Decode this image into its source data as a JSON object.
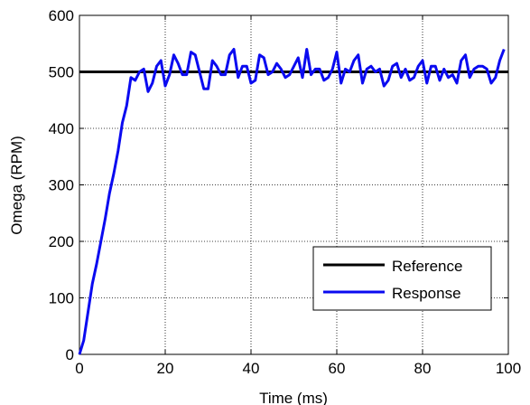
{
  "chart_data": {
    "type": "line",
    "xlabel": "Time (ms)",
    "ylabel": "Omega (RPM)",
    "xlim": [
      0,
      100
    ],
    "ylim": [
      0,
      600
    ],
    "xticks": [
      0,
      20,
      40,
      60,
      80,
      100
    ],
    "yticks": [
      0,
      100,
      200,
      300,
      400,
      500,
      600
    ],
    "xtick_labels": [
      "0",
      "20",
      "40",
      "60",
      "80",
      "100"
    ],
    "ytick_labels": [
      "0",
      "100",
      "200",
      "300",
      "400",
      "500",
      "600"
    ],
    "grid": true,
    "legend_position": "bottom-right",
    "series": [
      {
        "name": "Reference",
        "color": "#000000",
        "x": [
          0,
          100
        ],
        "y": [
          500,
          500
        ]
      },
      {
        "name": "Response",
        "color": "#0a0af0",
        "x": [
          0,
          1,
          2,
          3,
          4,
          5,
          6,
          7,
          8,
          9,
          10,
          11,
          12,
          13,
          14,
          15,
          16,
          17,
          18,
          19,
          20,
          21,
          22,
          23,
          24,
          25,
          26,
          27,
          28,
          29,
          30,
          31,
          32,
          33,
          34,
          35,
          36,
          37,
          38,
          39,
          40,
          41,
          42,
          43,
          44,
          45,
          46,
          47,
          48,
          49,
          50,
          51,
          52,
          53,
          54,
          55,
          56,
          57,
          58,
          59,
          60,
          61,
          62,
          63,
          64,
          65,
          66,
          67,
          68,
          69,
          70,
          71,
          72,
          73,
          74,
          75,
          76,
          77,
          78,
          79,
          80,
          81,
          82,
          83,
          84,
          85,
          86,
          87,
          88,
          89,
          90,
          91,
          92,
          93,
          94,
          95,
          96,
          97,
          98,
          99
        ],
        "y": [
          0,
          25,
          75,
          125,
          160,
          200,
          240,
          285,
          320,
          360,
          410,
          440,
          490,
          485,
          500,
          505,
          465,
          480,
          510,
          520,
          475,
          495,
          530,
          515,
          495,
          495,
          535,
          530,
          500,
          470,
          470,
          520,
          510,
          495,
          495,
          530,
          540,
          490,
          510,
          510,
          480,
          485,
          530,
          525,
          495,
          500,
          515,
          505,
          490,
          495,
          510,
          525,
          490,
          540,
          495,
          505,
          505,
          485,
          490,
          505,
          535,
          480,
          505,
          500,
          520,
          530,
          480,
          505,
          510,
          500,
          505,
          475,
          485,
          510,
          515,
          490,
          505,
          485,
          490,
          510,
          520,
          480,
          510,
          510,
          485,
          505,
          490,
          495,
          480,
          520,
          530,
          490,
          505,
          510,
          510,
          505,
          480,
          490,
          520,
          540
        ]
      }
    ]
  }
}
